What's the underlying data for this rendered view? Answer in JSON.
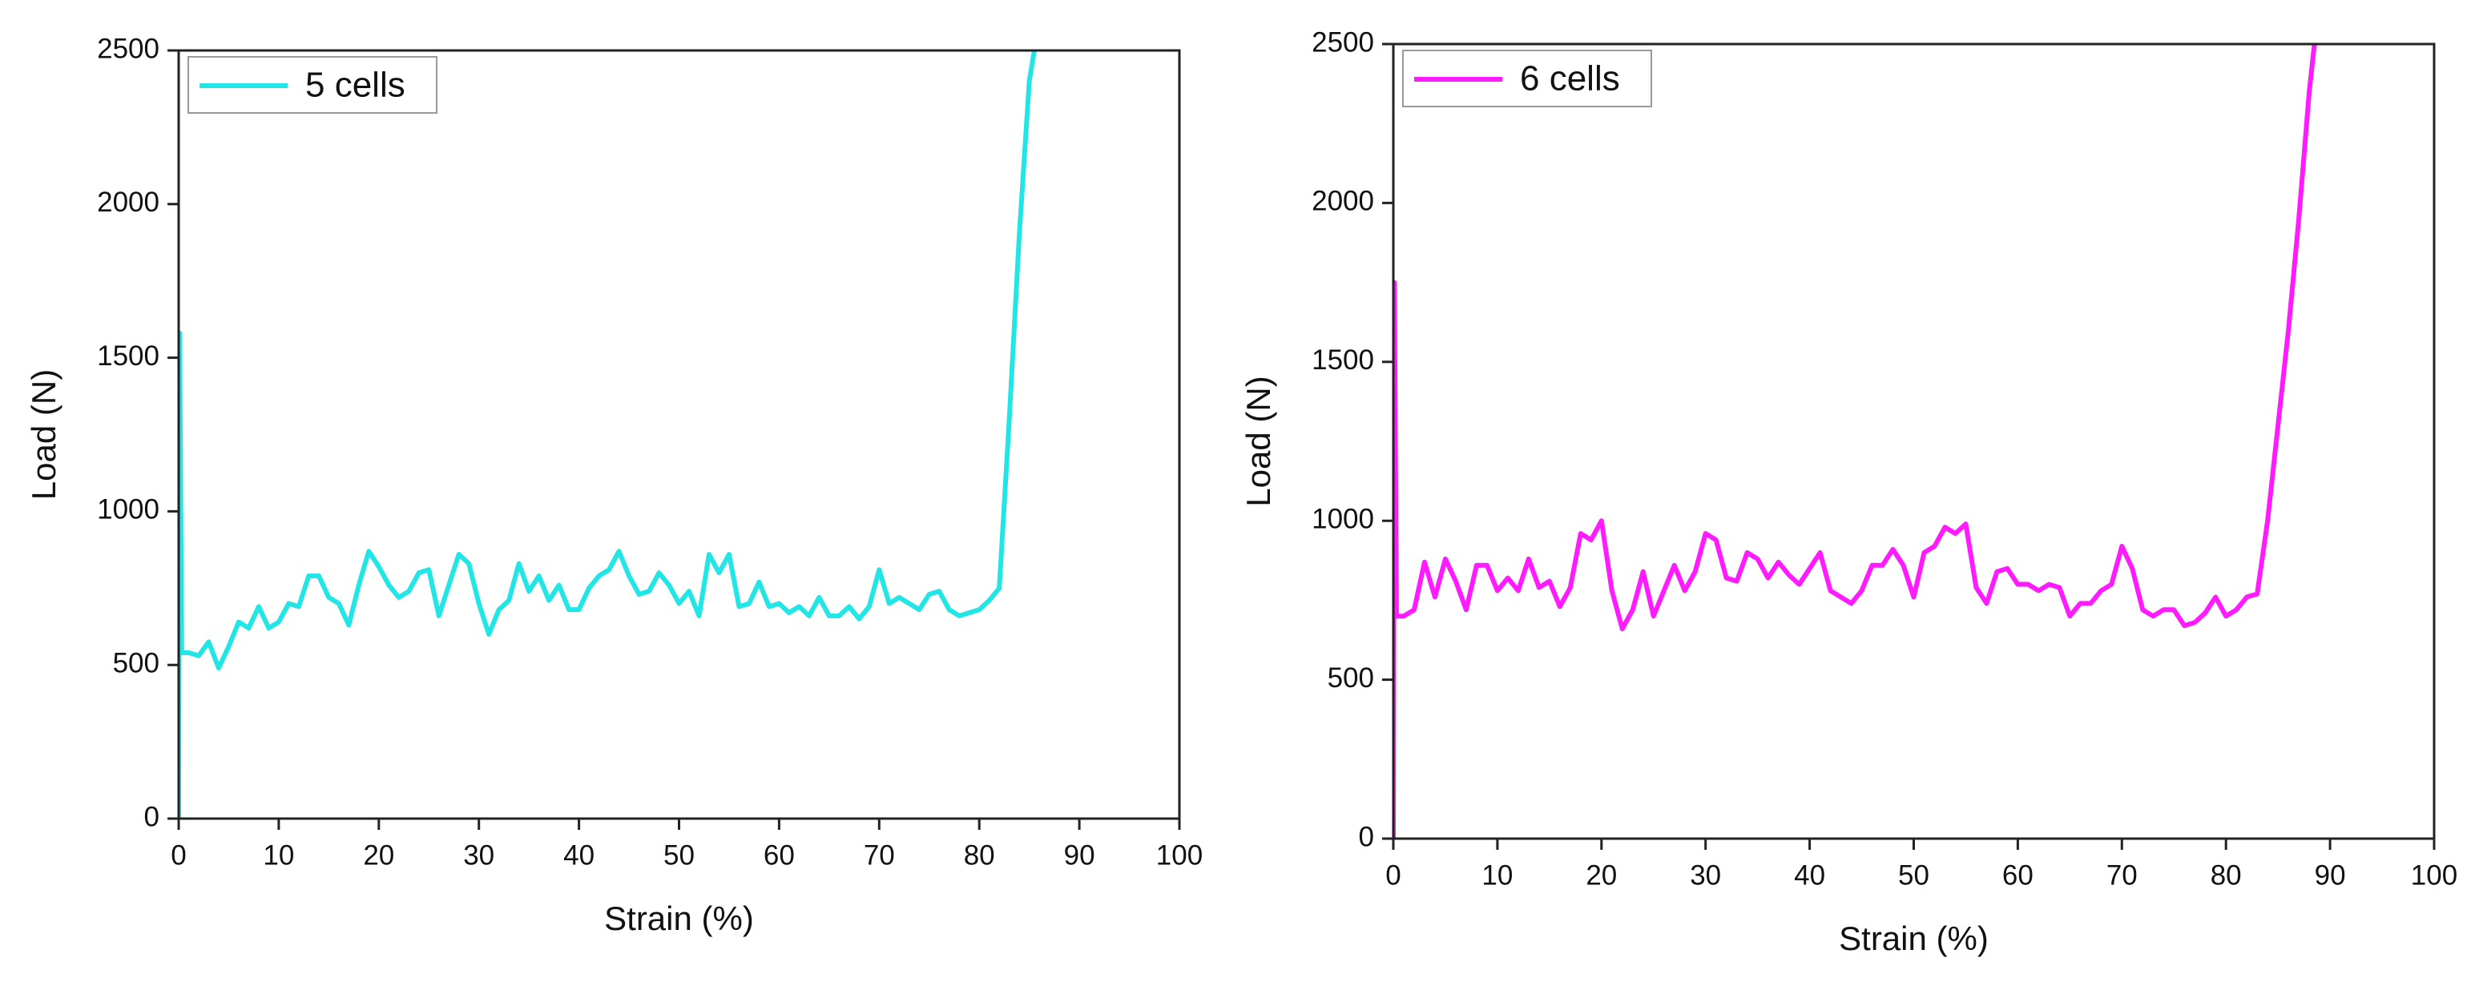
{
  "chart_data": [
    {
      "type": "line",
      "xlabel": "Strain (%)",
      "ylabel": "Load (N)",
      "xlim": [
        0,
        100
      ],
      "xticks": [
        0,
        10,
        20,
        30,
        40,
        50,
        60,
        70,
        80,
        90,
        100
      ],
      "ylim": [
        0,
        2500
      ],
      "yticks": [
        0,
        500,
        1000,
        1500,
        2000,
        2500
      ],
      "legend": "upper-left",
      "x": [
        0,
        0.1,
        0.3,
        1,
        2,
        3,
        4,
        5,
        6,
        7,
        8,
        9,
        10,
        11,
        12,
        13,
        14,
        15,
        16,
        17,
        18,
        19,
        20,
        21,
        22,
        23,
        24,
        25,
        26,
        27,
        28,
        29,
        30,
        31,
        32,
        33,
        34,
        35,
        36,
        37,
        38,
        39,
        40,
        41,
        42,
        43,
        44,
        45,
        46,
        47,
        48,
        49,
        50,
        51,
        52,
        53,
        54,
        55,
        56,
        57,
        58,
        59,
        60,
        61,
        62,
        63,
        64,
        65,
        66,
        67,
        68,
        69,
        70,
        71,
        72,
        73,
        74,
        75,
        76,
        77,
        78,
        79,
        80,
        81,
        82,
        83,
        84,
        85,
        85.5
      ],
      "series": [
        {
          "name": "5 cells",
          "color": "#22e5e5",
          "values": [
            0,
            1580,
            540,
            540,
            530,
            575,
            490,
            560,
            640,
            620,
            690,
            620,
            640,
            700,
            690,
            790,
            790,
            720,
            700,
            630,
            760,
            870,
            820,
            760,
            720,
            740,
            800,
            810,
            660,
            760,
            860,
            830,
            700,
            600,
            680,
            710,
            830,
            740,
            790,
            710,
            760,
            680,
            680,
            750,
            790,
            810,
            870,
            790,
            730,
            740,
            800,
            760,
            700,
            740,
            660,
            860,
            800,
            860,
            690,
            700,
            770,
            690,
            700,
            670,
            690,
            660,
            720,
            660,
            660,
            690,
            650,
            690,
            810,
            700,
            720,
            700,
            680,
            730,
            740,
            680,
            660,
            670,
            680,
            710,
            750,
            1300,
            1900,
            2400,
            2500
          ]
        }
      ]
    },
    {
      "type": "line",
      "xlabel": "Strain (%)",
      "ylabel": "Load (N)",
      "xlim": [
        0,
        100
      ],
      "xticks": [
        0,
        10,
        20,
        30,
        40,
        50,
        60,
        70,
        80,
        90,
        100
      ],
      "ylim": [
        0,
        2500
      ],
      "yticks": [
        0,
        500,
        1000,
        1500,
        2000,
        2500
      ],
      "legend": "upper-left",
      "x": [
        0,
        0.1,
        0.3,
        1,
        2,
        3,
        4,
        5,
        6,
        7,
        8,
        9,
        10,
        11,
        12,
        13,
        14,
        15,
        16,
        17,
        18,
        19,
        20,
        21,
        22,
        23,
        24,
        25,
        26,
        27,
        28,
        29,
        30,
        31,
        32,
        33,
        34,
        35,
        36,
        37,
        38,
        39,
        40,
        41,
        42,
        43,
        44,
        45,
        46,
        47,
        48,
        49,
        50,
        51,
        52,
        53,
        54,
        55,
        56,
        57,
        58,
        59,
        60,
        61,
        62,
        63,
        64,
        65,
        66,
        67,
        68,
        69,
        70,
        71,
        72,
        73,
        74,
        75,
        76,
        77,
        78,
        79,
        80,
        81,
        82,
        83,
        84,
        85,
        86,
        87,
        88,
        88.5
      ],
      "series": [
        {
          "name": "6 cells",
          "color": "#ff1aff",
          "values": [
            0,
            1750,
            700,
            700,
            720,
            870,
            760,
            880,
            810,
            720,
            860,
            860,
            780,
            820,
            780,
            880,
            790,
            810,
            730,
            790,
            960,
            940,
            1000,
            780,
            660,
            720,
            840,
            700,
            780,
            860,
            780,
            840,
            960,
            940,
            820,
            810,
            900,
            880,
            820,
            870,
            830,
            800,
            850,
            900,
            780,
            760,
            740,
            780,
            860,
            860,
            910,
            860,
            760,
            900,
            920,
            980,
            960,
            990,
            790,
            740,
            840,
            850,
            800,
            800,
            780,
            800,
            790,
            700,
            740,
            740,
            780,
            800,
            920,
            850,
            720,
            700,
            720,
            720,
            670,
            680,
            710,
            760,
            700,
            720,
            760,
            770,
            1000,
            1300,
            1600,
            1950,
            2350,
            2500
          ]
        }
      ]
    }
  ]
}
